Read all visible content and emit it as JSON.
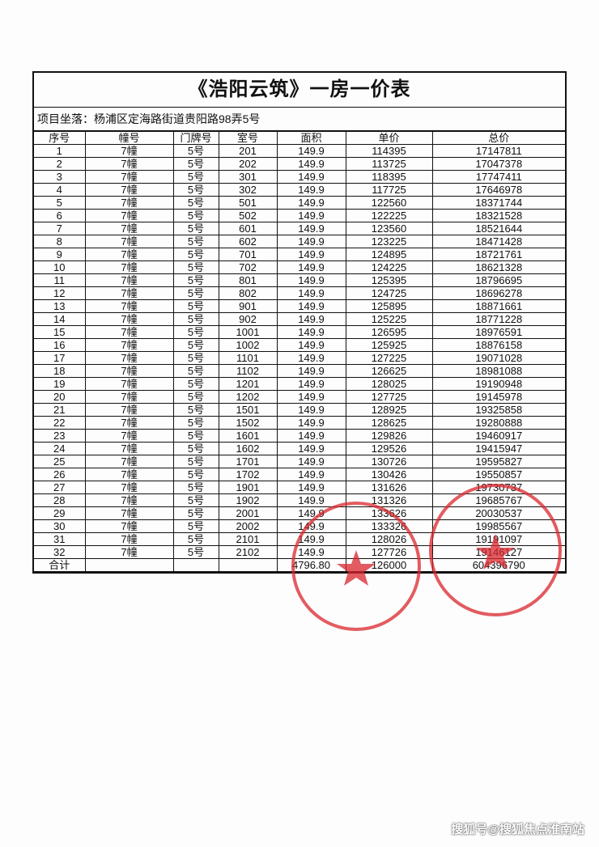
{
  "title": "《浩阳云筑》一房一价表",
  "address_label": "项目坐落：",
  "address": "杨浦区定海路街道贵阳路98弄5号",
  "columns": [
    "序号",
    "幢号",
    "门牌号",
    "室号",
    "面积",
    "单价",
    "总价"
  ],
  "rows": [
    [
      "1",
      "7幢",
      "5号",
      "201",
      "149.9",
      "114395",
      "17147811"
    ],
    [
      "2",
      "7幢",
      "5号",
      "202",
      "149.9",
      "113725",
      "17047378"
    ],
    [
      "3",
      "7幢",
      "5号",
      "301",
      "149.9",
      "118395",
      "17747411"
    ],
    [
      "4",
      "7幢",
      "5号",
      "302",
      "149.9",
      "117725",
      "17646978"
    ],
    [
      "5",
      "7幢",
      "5号",
      "501",
      "149.9",
      "122560",
      "18371744"
    ],
    [
      "6",
      "7幢",
      "5号",
      "502",
      "149.9",
      "122225",
      "18321528"
    ],
    [
      "7",
      "7幢",
      "5号",
      "601",
      "149.9",
      "123560",
      "18521644"
    ],
    [
      "8",
      "7幢",
      "5号",
      "602",
      "149.9",
      "123225",
      "18471428"
    ],
    [
      "9",
      "7幢",
      "5号",
      "701",
      "149.9",
      "124895",
      "18721761"
    ],
    [
      "10",
      "7幢",
      "5号",
      "702",
      "149.9",
      "124225",
      "18621328"
    ],
    [
      "11",
      "7幢",
      "5号",
      "801",
      "149.9",
      "125395",
      "18796695"
    ],
    [
      "12",
      "7幢",
      "5号",
      "802",
      "149.9",
      "124725",
      "18696278"
    ],
    [
      "13",
      "7幢",
      "5号",
      "901",
      "149.9",
      "125895",
      "18871661"
    ],
    [
      "14",
      "7幢",
      "5号",
      "902",
      "149.9",
      "125225",
      "18771228"
    ],
    [
      "15",
      "7幢",
      "5号",
      "1001",
      "149.9",
      "126595",
      "18976591"
    ],
    [
      "16",
      "7幢",
      "5号",
      "1002",
      "149.9",
      "125925",
      "18876158"
    ],
    [
      "17",
      "7幢",
      "5号",
      "1101",
      "149.9",
      "127225",
      "19071028"
    ],
    [
      "18",
      "7幢",
      "5号",
      "1102",
      "149.9",
      "126625",
      "18981088"
    ],
    [
      "19",
      "7幢",
      "5号",
      "1201",
      "149.9",
      "128025",
      "19190948"
    ],
    [
      "20",
      "7幢",
      "5号",
      "1202",
      "149.9",
      "127725",
      "19145978"
    ],
    [
      "21",
      "7幢",
      "5号",
      "1501",
      "149.9",
      "128925",
      "19325858"
    ],
    [
      "22",
      "7幢",
      "5号",
      "1502",
      "149.9",
      "128625",
      "19280888"
    ],
    [
      "23",
      "7幢",
      "5号",
      "1601",
      "149.9",
      "129826",
      "19460917"
    ],
    [
      "24",
      "7幢",
      "5号",
      "1602",
      "149.9",
      "129526",
      "19415947"
    ],
    [
      "25",
      "7幢",
      "5号",
      "1701",
      "149.9",
      "130726",
      "19595827"
    ],
    [
      "26",
      "7幢",
      "5号",
      "1702",
      "149.9",
      "130426",
      "19550857"
    ],
    [
      "27",
      "7幢",
      "5号",
      "1901",
      "149.9",
      "131626",
      "19730737"
    ],
    [
      "28",
      "7幢",
      "5号",
      "1902",
      "149.9",
      "131326",
      "19685767"
    ],
    [
      "29",
      "7幢",
      "5号",
      "2001",
      "149.9",
      "133626",
      "20030537"
    ],
    [
      "30",
      "7幢",
      "5号",
      "2002",
      "149.9",
      "133326",
      "19985567"
    ],
    [
      "31",
      "7幢",
      "5号",
      "2101",
      "149.9",
      "128026",
      "19191097"
    ],
    [
      "32",
      "7幢",
      "5号",
      "2102",
      "149.9",
      "127726",
      "19146127"
    ]
  ],
  "total_row": [
    "合计",
    "",
    "",
    "",
    "4796.80",
    "126000",
    "604396790"
  ],
  "stamp_color": "#d9262c",
  "watermark": "搜狐号@搜狐焦点淮南站"
}
